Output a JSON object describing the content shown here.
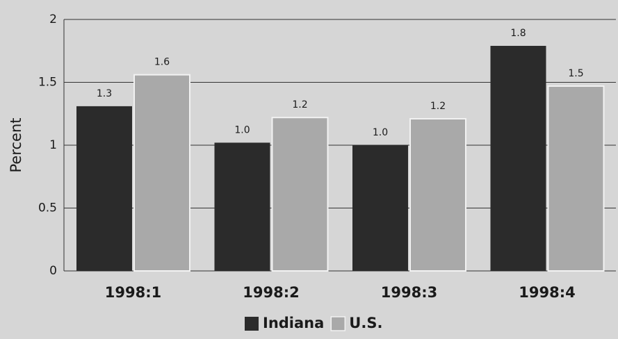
{
  "chart_data": {
    "type": "bar",
    "y_label": "Percent",
    "categories": [
      "1998:1",
      "1998:2",
      "1998:3",
      "1998:4"
    ],
    "series": [
      {
        "name": "Indiana",
        "color": "#2b2b2b",
        "values": [
          1.31,
          1.02,
          1.0,
          1.79
        ],
        "value_labels": [
          "1.3",
          "1.0",
          "1.0",
          "1.8"
        ]
      },
      {
        "name": "U.S.",
        "color": "#a9a9a9",
        "values": [
          1.56,
          1.22,
          1.21,
          1.47
        ],
        "value_labels": [
          "1.6",
          "1.2",
          "1.2",
          "1.5"
        ]
      }
    ],
    "ylim": [
      0,
      2
    ],
    "yticks": [
      0,
      0.5,
      1,
      1.5,
      2
    ],
    "grid": true,
    "legend": "bottom"
  }
}
